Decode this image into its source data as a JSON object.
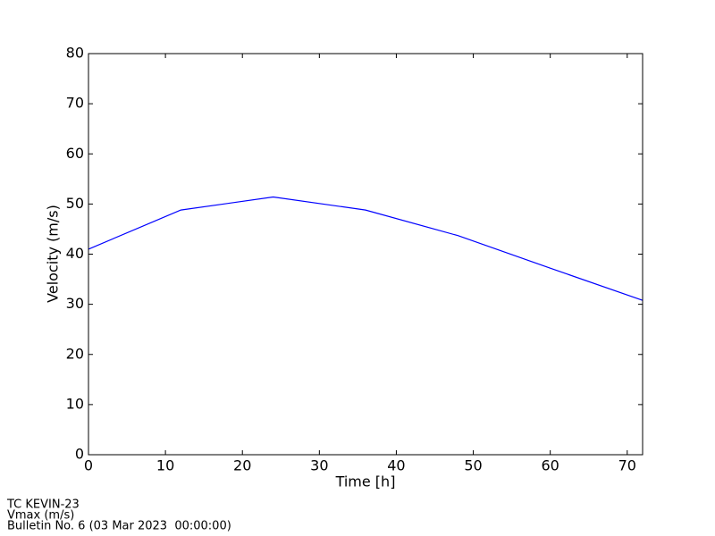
{
  "chart_data": {
    "type": "line",
    "x": [
      0,
      12,
      24,
      36,
      48,
      60,
      72
    ],
    "series": [
      {
        "color": "#0000ff",
        "values": [
          41.0,
          48.8,
          51.4,
          48.8,
          43.7,
          37.2,
          30.8
        ]
      }
    ],
    "xlabel": "Time [h]",
    "ylabel": "Velocity (m/s)",
    "xlim": [
      0,
      72
    ],
    "ylim": [
      0,
      80
    ],
    "xticks": [
      0,
      10,
      20,
      30,
      40,
      50,
      60,
      70
    ],
    "yticks": [
      0,
      10,
      20,
      30,
      40,
      50,
      60,
      70,
      80
    ]
  },
  "footer": [
    "TC KEVIN-23",
    "Vmax (m/s)",
    "Bulletin No. 6 (03 Mar 2023  00:00:00)"
  ]
}
